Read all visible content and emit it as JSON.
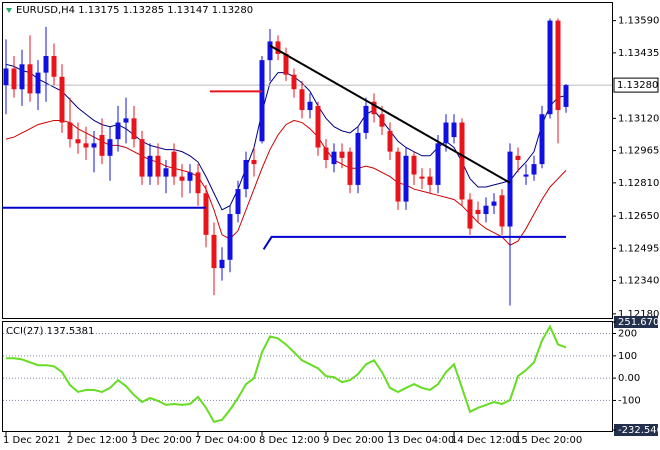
{
  "chart_data": {
    "type": "candlestick",
    "title": "EURUSD,H4  1.13175 1.13285 1.13147 1.13280",
    "categories": [
      "1 Dec 2021",
      null,
      null,
      null,
      null,
      null,
      null,
      null,
      "2 Dec 12:00",
      null,
      null,
      null,
      null,
      null,
      null,
      null,
      "3 Dec 20:00",
      null,
      null,
      null,
      null,
      null,
      null,
      null,
      "7 Dec 04:00",
      null,
      null,
      null,
      null,
      null,
      null,
      null,
      "8 Dec 12:00",
      null,
      null,
      null,
      null,
      null,
      null,
      null,
      "9 Dec 20:00",
      null,
      null,
      null,
      null,
      null,
      null,
      null,
      "13 Dec 04:00",
      null,
      null,
      null,
      null,
      null,
      null,
      null,
      "14 Dec 12:00",
      null,
      null,
      null,
      null,
      null,
      null,
      null,
      "15 Dec 20:00",
      null,
      null,
      null,
      null,
      null,
      null
    ],
    "open": [
      1.1328,
      1.1336,
      1.1326,
      1.1338,
      1.1324,
      1.1334,
      1.1342,
      1.1332,
      1.131,
      1.1302,
      1.13,
      1.1298,
      1.1304,
      1.1294,
      1.1302,
      1.131,
      1.1312,
      1.1302,
      1.1284,
      1.1294,
      1.1284,
      1.1296,
      1.1284,
      1.1282,
      1.1286,
      1.1276,
      1.1256,
      1.124,
      1.1244,
      1.1266,
      1.1278,
      1.1292,
      1.1301,
      1.134,
      1.1349,
      1.1343,
      1.1333,
      1.1326,
      1.1316,
      1.1318,
      1.1298,
      1.129,
      1.1296,
      1.1296,
      1.128,
      1.1305,
      1.132,
      1.1314,
      1.1306,
      1.1296,
      1.1272,
      1.1294,
      1.1284,
      1.1284,
      1.128,
      1.13,
      1.1303,
      1.131,
      1.1273,
      1.1268,
      1.1266,
      1.127,
      1.1275,
      1.126,
      1.1294,
      1.1284,
      1.1285,
      1.129,
      1.1314,
      1.1359,
      1.13175
    ],
    "high": [
      1.135,
      1.1342,
      1.1345,
      1.1352,
      1.134,
      1.1356,
      1.1348,
      1.1338,
      1.1322,
      1.131,
      1.1308,
      1.1306,
      1.1312,
      1.1308,
      1.1318,
      1.1322,
      1.1318,
      1.1306,
      1.13,
      1.13,
      1.1292,
      1.13,
      1.129,
      1.129,
      1.129,
      1.128,
      1.1262,
      1.125,
      1.127,
      1.1282,
      1.1296,
      1.1298,
      1.1342,
      1.1355,
      1.1352,
      1.1346,
      1.1336,
      1.133,
      1.1324,
      1.132,
      1.1302,
      1.13,
      1.13,
      1.1298,
      1.1308,
      1.1322,
      1.1324,
      1.1318,
      1.131,
      1.1298,
      1.1298,
      1.1296,
      1.1288,
      1.1288,
      1.1304,
      1.1314,
      1.1314,
      1.1312,
      1.1276,
      1.1272,
      1.1274,
      1.1276,
      1.1278,
      1.13,
      1.1298,
      1.129,
      1.1294,
      1.1318,
      1.136,
      1.136,
      1.13285
    ],
    "low": [
      1.1314,
      1.1322,
      1.1318,
      1.132,
      1.1316,
      1.132,
      1.1328,
      1.1305,
      1.1298,
      1.1295,
      1.1292,
      1.1286,
      1.129,
      1.1282,
      1.1296,
      1.13,
      1.1298,
      1.128,
      1.128,
      1.128,
      1.1276,
      1.128,
      1.1274,
      1.1276,
      1.127,
      1.125,
      1.1227,
      1.1234,
      1.1238,
      1.1262,
      1.1274,
      1.1284,
      1.13,
      1.133,
      1.134,
      1.133,
      1.1322,
      1.1312,
      1.1312,
      1.1294,
      1.1288,
      1.1286,
      1.1288,
      1.1276,
      1.1276,
      1.1302,
      1.131,
      1.1304,
      1.1292,
      1.1268,
      1.1268,
      1.128,
      1.1278,
      1.1276,
      1.1276,
      1.1296,
      1.13,
      1.127,
      1.1256,
      1.1262,
      1.1262,
      1.1266,
      1.1256,
      1.1222,
      1.1286,
      1.128,
      1.1282,
      1.1288,
      1.1312,
      1.13,
      1.13147
    ],
    "close": [
      1.1336,
      1.1326,
      1.1338,
      1.1324,
      1.1334,
      1.1342,
      1.1332,
      1.131,
      1.1302,
      1.13,
      1.1298,
      1.13,
      1.1294,
      1.1302,
      1.131,
      1.1312,
      1.1302,
      1.1284,
      1.1294,
      1.1284,
      1.1288,
      1.1284,
      1.1282,
      1.1286,
      1.1276,
      1.1256,
      1.124,
      1.1244,
      1.1266,
      1.1278,
      1.1292,
      1.129,
      1.134,
      1.1349,
      1.1343,
      1.1333,
      1.1326,
      1.1316,
      1.132,
      1.1298,
      1.1292,
      1.1296,
      1.1293,
      1.128,
      1.1305,
      1.1318,
      1.1314,
      1.1308,
      1.1296,
      1.1272,
      1.1294,
      1.1285,
      1.1283,
      1.128,
      1.13,
      1.131,
      1.131,
      1.1273,
      1.1259,
      1.1266,
      1.127,
      1.1272,
      1.126,
      1.1296,
      1.1292,
      1.1285,
      1.129,
      1.1314,
      1.1359,
      1.1316,
      1.1328
    ],
    "up_color": "#1010e0",
    "down_color": "#e8141c",
    "ylim": [
      1.1216,
      1.1367
    ],
    "yticks": [
      {
        "value": 1.1359,
        "label": "1.13590"
      },
      1.13435,
      {
        "value": 1.1312,
        "label": "1.13120"
      },
      1.12965,
      {
        "value": 1.1281,
        "label": "1.12810"
      },
      {
        "value": 1.1265,
        "label": "1.12650"
      },
      1.12495,
      {
        "value": 1.1234,
        "label": "1.12340"
      },
      {
        "value": 1.1218,
        "label": "1.12180"
      }
    ],
    "price_label": {
      "value": 1.1328,
      "label": "1.13280"
    },
    "series": [
      {
        "color": "#000080",
        "values": [
          1.1338,
          1.1337,
          1.1335,
          1.1334,
          1.1331,
          1.1329,
          1.1327,
          1.1325,
          1.1321,
          1.1317,
          1.1314,
          1.1311,
          1.1309,
          1.1308,
          1.1309,
          1.1307,
          1.1304,
          1.1301,
          1.1299,
          1.1298,
          1.1297,
          1.1297,
          1.1296,
          1.1294,
          1.1291,
          1.1284,
          1.1276,
          1.1268,
          1.127,
          1.1278,
          1.1288,
          1.1298,
          1.1315,
          1.1329,
          1.1334,
          1.1334,
          1.1332,
          1.1329,
          1.1325,
          1.1318,
          1.1312,
          1.1308,
          1.1306,
          1.1305,
          1.1308,
          1.1314,
          1.1316,
          1.1311,
          1.1306,
          1.1301,
          1.1298,
          1.1296,
          1.1294,
          1.1294,
          1.1298,
          1.1301,
          1.1298,
          1.1291,
          1.1283,
          1.1279,
          1.1279,
          1.128,
          1.1281,
          1.1282,
          1.1287,
          1.1291,
          1.1296,
          1.1309,
          1.1318,
          1.1322,
          1.1323
        ]
      },
      {
        "color": "#cc0000",
        "values": [
          1.1302,
          1.1303,
          1.1305,
          1.1307,
          1.1309,
          1.131,
          1.1311,
          1.1311,
          1.131,
          1.1307,
          1.1305,
          1.1303,
          1.1301,
          1.1299,
          1.1299,
          1.1298,
          1.1296,
          1.1294,
          1.1292,
          1.1291,
          1.1289,
          1.1288,
          1.1287,
          1.1286,
          1.1284,
          1.1278,
          1.1268,
          1.1256,
          1.1254,
          1.1258,
          1.1268,
          1.1278,
          1.1288,
          1.1297,
          1.1304,
          1.1309,
          1.1311,
          1.131,
          1.1307,
          1.1303,
          1.1297,
          1.1292,
          1.129,
          1.1288,
          1.1288,
          1.1289,
          1.1288,
          1.1286,
          1.1284,
          1.1281,
          1.128,
          1.1278,
          1.1277,
          1.1276,
          1.1275,
          1.1274,
          1.1273,
          1.127,
          1.1266,
          1.1262,
          1.1259,
          1.1257,
          1.1255,
          1.1251,
          1.1253,
          1.1259,
          1.1266,
          1.1273,
          1.1279,
          1.1283,
          1.1287
        ]
      }
    ],
    "drawings": [
      {
        "color": "#0000cd",
        "x": [
          -0.5,
          25
        ],
        "y": [
          1.1269,
          1.1269
        ]
      },
      {
        "color": "#e8141c",
        "x": [
          25.5,
          32
        ],
        "y": [
          1.1325,
          1.1325
        ]
      },
      {
        "color": "#0000cd",
        "x": [
          32.2,
          33.2,
          70
        ],
        "y": [
          1.1249,
          1.1255,
          1.1255
        ]
      },
      {
        "color": "#000000",
        "x": [
          33,
          63
        ],
        "y": [
          1.1347,
          1.1281
        ]
      }
    ],
    "indicator": {
      "type": "line",
      "title": "CCI(27) 137.5381",
      "color": "#66dd22",
      "values": [
        89,
        89,
        84,
        71,
        58,
        58,
        53,
        27,
        -31,
        -62,
        -53,
        -53,
        -62,
        -44,
        -9,
        -36,
        -76,
        -107,
        -89,
        -102,
        -120,
        -116,
        -120,
        -116,
        -84,
        -133,
        -196,
        -187,
        -142,
        -89,
        -27,
        0,
        116,
        187,
        178,
        151,
        116,
        80,
        62,
        44,
        9,
        4,
        -18,
        -9,
        18,
        62,
        80,
        27,
        -44,
        -62,
        -44,
        -27,
        -44,
        -53,
        -27,
        27,
        62,
        -44,
        -151,
        -133,
        -120,
        -107,
        -116,
        -98,
        9,
        36,
        71,
        169,
        231,
        151,
        137.5381
      ],
      "ylim": [
        -232.546,
        251.6703
      ],
      "yticks": [
        251.6703,
        200,
        100,
        {
          "value": 0,
          "label": "0.00"
        },
        -100,
        -232.546
      ]
    }
  }
}
